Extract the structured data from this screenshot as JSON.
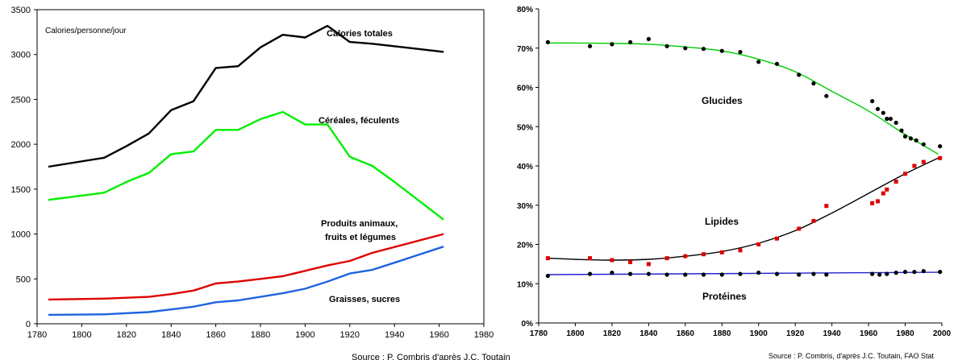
{
  "chart_data": [
    {
      "type": "line",
      "title": "",
      "unit_label": "Calories/personne/jour",
      "xlabel": "",
      "ylabel": "",
      "xlim": [
        1780,
        1980
      ],
      "ylim": [
        0,
        3500
      ],
      "x_ticks": [
        1780,
        1800,
        1820,
        1840,
        1860,
        1880,
        1900,
        1920,
        1940,
        1960,
        1980
      ],
      "y_ticks": [
        0,
        500,
        1000,
        1500,
        2000,
        2500,
        3000,
        3500
      ],
      "grid": false,
      "source": "Source : P. Combris d'après J.C. Toutain",
      "series": [
        {
          "name": "Calories totales",
          "label_lines": [
            "Calories totales"
          ],
          "color": "#000000",
          "x": [
            1785,
            1810,
            1820,
            1830,
            1840,
            1850,
            1860,
            1870,
            1880,
            1890,
            1900,
            1910,
            1920,
            1930,
            1962
          ],
          "y": [
            1750,
            1850,
            1980,
            2120,
            2380,
            2480,
            2850,
            2870,
            3080,
            3220,
            3190,
            3320,
            3140,
            3120,
            3030
          ]
        },
        {
          "name": "Céréales, féculents",
          "label_lines": [
            "Céréales, féculents"
          ],
          "color": "#00ee00",
          "x": [
            1785,
            1810,
            1820,
            1830,
            1840,
            1850,
            1860,
            1870,
            1880,
            1890,
            1900,
            1910,
            1920,
            1930,
            1940,
            1962
          ],
          "y": [
            1380,
            1460,
            1580,
            1680,
            1890,
            1920,
            2160,
            2160,
            2280,
            2360,
            2220,
            2220,
            1860,
            1760,
            1580,
            1160
          ]
        },
        {
          "name": "Produits animaux, fruits et légumes",
          "label_lines": [
            "Produits animaux,",
            "fruits et légumes"
          ],
          "color": "#dd0000",
          "x": [
            1785,
            1810,
            1830,
            1840,
            1850,
            1860,
            1870,
            1880,
            1890,
            1900,
            1910,
            1920,
            1930,
            1962
          ],
          "y": [
            270,
            280,
            300,
            330,
            370,
            450,
            470,
            500,
            530,
            590,
            650,
            700,
            790,
            1000
          ]
        },
        {
          "name": "Graisses, sucres",
          "label_lines": [
            "Graisses, sucres"
          ],
          "color": "#1f63e0",
          "x": [
            1785,
            1810,
            1830,
            1840,
            1850,
            1860,
            1870,
            1880,
            1890,
            1900,
            1910,
            1920,
            1930,
            1940,
            1962
          ],
          "y": [
            100,
            105,
            130,
            160,
            190,
            240,
            260,
            300,
            340,
            390,
            470,
            560,
            600,
            680,
            860
          ]
        }
      ]
    },
    {
      "type": "scatter",
      "title": "",
      "xlabel": "",
      "ylabel": "",
      "xlim": [
        1780,
        2000
      ],
      "ylim": [
        0,
        80
      ],
      "x_ticks": [
        1780,
        1800,
        1820,
        1840,
        1860,
        1880,
        1900,
        1920,
        1940,
        1960,
        1980,
        2000
      ],
      "y_ticks": [
        "0%",
        "10%",
        "20%",
        "30%",
        "40%",
        "50%",
        "60%",
        "70%",
        "80%"
      ],
      "grid": false,
      "source": "Source : P. Combris, d'après J.C. Toutain, FAO Stat",
      "series": [
        {
          "name": "Glucides",
          "color": "#000000",
          "trend_color": "#00cc00",
          "marker": "circle",
          "x": [
            1785,
            1808,
            1820,
            1830,
            1840,
            1850,
            1860,
            1870,
            1880,
            1890,
            1900,
            1910,
            1922,
            1930,
            1937,
            1962,
            1965,
            1968,
            1970,
            1972,
            1975,
            1978,
            1980,
            1983,
            1986,
            1990,
            1999
          ],
          "y": [
            71.5,
            70.5,
            71,
            71.5,
            72.3,
            70.5,
            70,
            69.8,
            69.3,
            69,
            66.5,
            66,
            63.2,
            61,
            57.8,
            56.5,
            54.5,
            53.5,
            52,
            52,
            51,
            49,
            47.5,
            47,
            46.5,
            45.5,
            45
          ],
          "trend_x": [
            1785,
            1800,
            1820,
            1840,
            1860,
            1880,
            1900,
            1920,
            1940,
            1960,
            1980,
            1998
          ],
          "trend_y": [
            71.3,
            71.3,
            71.2,
            71,
            70.3,
            69.3,
            67.2,
            64,
            59,
            54,
            48,
            43
          ]
        },
        {
          "name": "Lipides",
          "color": "#dd0000",
          "trend_color": "#000000",
          "marker": "square",
          "x": [
            1785,
            1808,
            1820,
            1830,
            1840,
            1850,
            1860,
            1870,
            1880,
            1890,
            1900,
            1910,
            1922,
            1930,
            1937,
            1962,
            1965,
            1968,
            1970,
            1975,
            1980,
            1985,
            1990,
            1999
          ],
          "y": [
            16.5,
            16.5,
            16,
            15.5,
            15,
            16.5,
            17,
            17.5,
            18,
            18.5,
            20,
            21.5,
            24,
            26,
            29.8,
            30.5,
            31,
            33,
            34,
            36,
            38,
            40,
            41,
            42
          ],
          "trend_x": [
            1785,
            1800,
            1820,
            1840,
            1860,
            1880,
            1900,
            1920,
            1940,
            1960,
            1980,
            1998
          ],
          "trend_y": [
            16.5,
            16.2,
            16,
            16.2,
            17,
            18.2,
            20.3,
            23.5,
            28,
            33,
            38,
            42
          ]
        },
        {
          "name": "Protéines",
          "color": "#000000",
          "trend_color": "#2222cc",
          "marker": "circle",
          "x": [
            1785,
            1808,
            1820,
            1830,
            1840,
            1850,
            1860,
            1870,
            1880,
            1890,
            1900,
            1910,
            1922,
            1930,
            1937,
            1962,
            1966,
            1970,
            1975,
            1980,
            1985,
            1990,
            1999
          ],
          "y": [
            12,
            12.5,
            12.8,
            12.5,
            12.5,
            12.3,
            12.3,
            12.3,
            12.3,
            12.5,
            12.8,
            12.5,
            12.3,
            12.5,
            12.3,
            12.5,
            12.3,
            12.5,
            12.8,
            13,
            13,
            13.2,
            13
          ],
          "trend_x": [
            1785,
            1998
          ],
          "trend_y": [
            12.3,
            12.9
          ]
        }
      ]
    }
  ]
}
